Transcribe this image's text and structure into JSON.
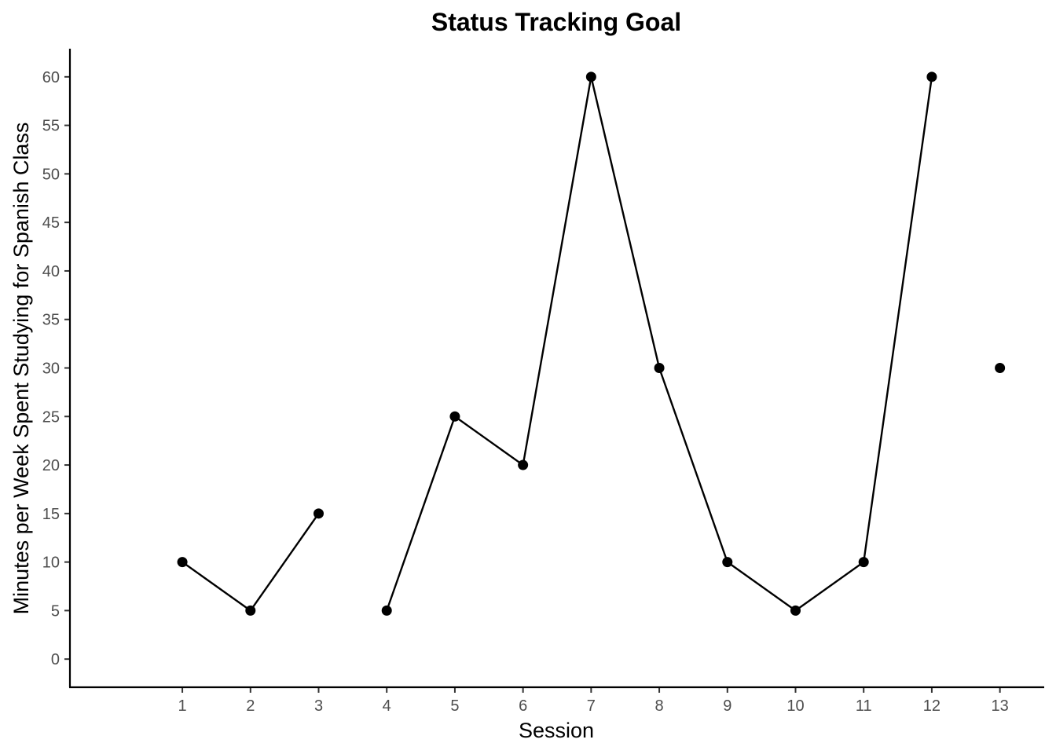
{
  "chart_data": {
    "type": "line",
    "title": "Status Tracking Goal",
    "xlabel": "Session",
    "ylabel": "Minutes per Week Spent Studying for Spanish Class",
    "x": [
      1,
      2,
      3,
      4,
      5,
      6,
      7,
      8,
      9,
      10,
      11,
      12,
      13
    ],
    "values": [
      10,
      5,
      15,
      5,
      25,
      20,
      60,
      30,
      10,
      5,
      10,
      60,
      30
    ],
    "segments": [
      [
        1,
        3
      ],
      [
        4,
        12
      ]
    ],
    "xlim": [
      -0.65,
      13.65
    ],
    "ylim": [
      -2.9,
      62.9
    ],
    "xticks": [
      1,
      2,
      3,
      4,
      5,
      6,
      7,
      8,
      9,
      10,
      11,
      12,
      13
    ],
    "yticks": [
      0,
      5,
      10,
      15,
      20,
      25,
      30,
      35,
      40,
      45,
      50,
      55,
      60
    ],
    "grid": false,
    "legend": "none"
  }
}
